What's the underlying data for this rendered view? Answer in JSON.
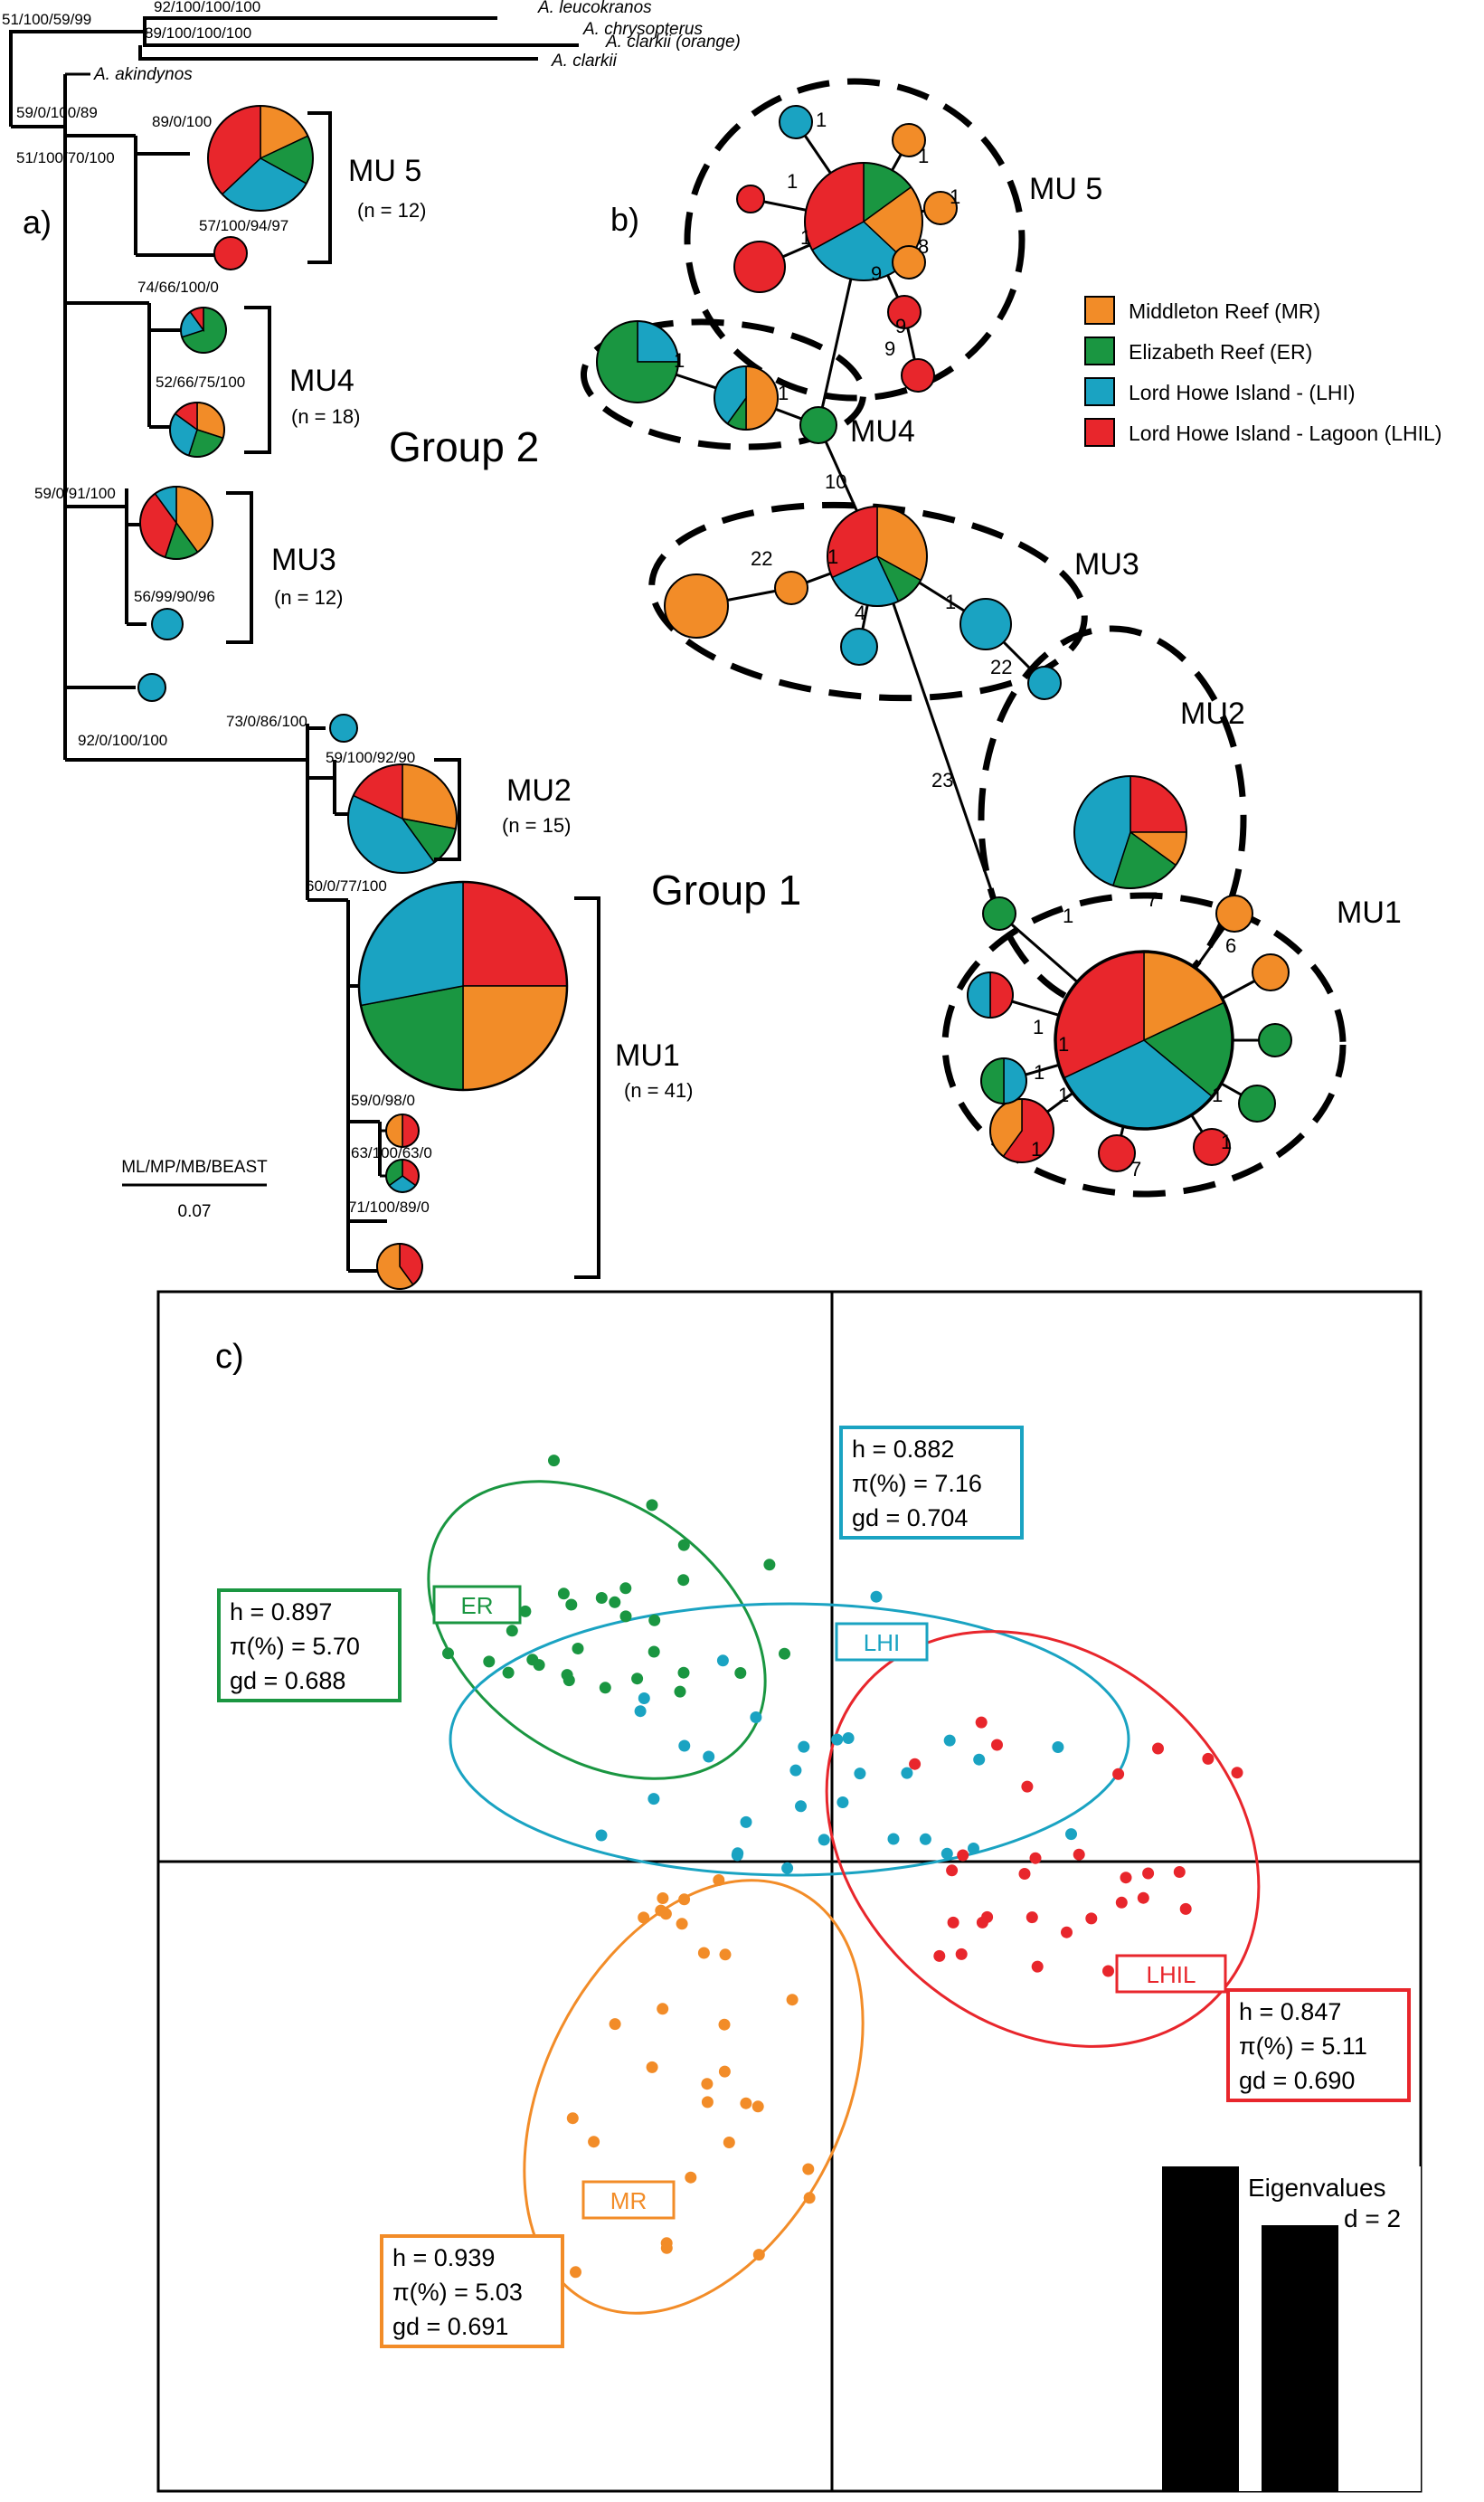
{
  "colors": {
    "MR": "#f28c28",
    "ER": "#1a9641",
    "LHI": "#1aa3c2",
    "LHIL": "#e8262c"
  },
  "panel_a": {
    "label": "a)",
    "scale_title": "ML/MP/MB/BEAST",
    "scale_value": "0.07",
    "outgroups": [
      "A. leucokranos",
      "A. chrysopterus",
      "A. clarkii (orange)",
      "A. clarkii"
    ],
    "ingroup_taxon": "A. akindynos",
    "support": [
      "51/100/59/99",
      "92/100/100/100",
      "89/100/100/100",
      "59/0/100/89",
      "51/100/70/100",
      "89/0/100",
      "57/100/94/97",
      "74/66/100/0",
      "52/66/75/100",
      "59/0/91/100",
      "56/99/90/96",
      "92/0/100/100",
      "73/0/86/100",
      "59/100/92/90",
      "60/0/77/100",
      "59/0/98/0",
      "63/100/63/0",
      "71/100/89/0"
    ],
    "clades": [
      {
        "name": "MU 5",
        "n": "(n = 12)"
      },
      {
        "name": "MU4",
        "n": "(n = 18)"
      },
      {
        "name": "MU3",
        "n": "(n = 12)"
      },
      {
        "name": "MU2",
        "n": "(n = 15)"
      },
      {
        "name": "MU1",
        "n": "(n = 41)"
      }
    ],
    "groups": [
      "Group 2",
      "Group 1"
    ]
  },
  "panel_b": {
    "label": "b)",
    "units": [
      "MU 5",
      "MU4",
      "MU3",
      "MU2",
      "MU1"
    ],
    "steps": [
      "1",
      "1",
      "1",
      "1",
      "1",
      "8",
      "9",
      "9",
      "9",
      "1",
      "1",
      "10",
      "22",
      "1",
      "4",
      "1",
      "22",
      "23",
      "1",
      "7",
      "6",
      "1",
      "1",
      "1",
      "1",
      "1",
      "7",
      "1",
      "1"
    ]
  },
  "legend": [
    {
      "key": "MR",
      "label": "Middleton Reef (MR)"
    },
    {
      "key": "ER",
      "label": "Elizabeth Reef (ER)"
    },
    {
      "key": "LHI",
      "label": "Lord Howe Island - (LHI)"
    },
    {
      "key": "LHIL",
      "label": "Lord Howe Island - Lagoon (LHIL)"
    }
  ],
  "panel_c": {
    "label": "c)",
    "eigen_title": "Eigenvalues",
    "eigen_d": "d = 2",
    "populations": [
      {
        "key": "ER",
        "tag": "ER",
        "h": "h = 0.897",
        "pi": "π(%) = 5.70",
        "gd": "gd = 0.688"
      },
      {
        "key": "LHI",
        "tag": "LHI",
        "h": "h = 0.882",
        "pi": "π(%) = 7.16",
        "gd": "gd = 0.704"
      },
      {
        "key": "LHIL",
        "tag": "LHIL",
        "h": "h = 0.847",
        "pi": "π(%) = 5.11",
        "gd": "gd = 0.690"
      },
      {
        "key": "MR",
        "tag": "MR",
        "h": "h = 0.939",
        "pi": "π(%) = 5.03",
        "gd": "gd = 0.691"
      }
    ]
  }
}
